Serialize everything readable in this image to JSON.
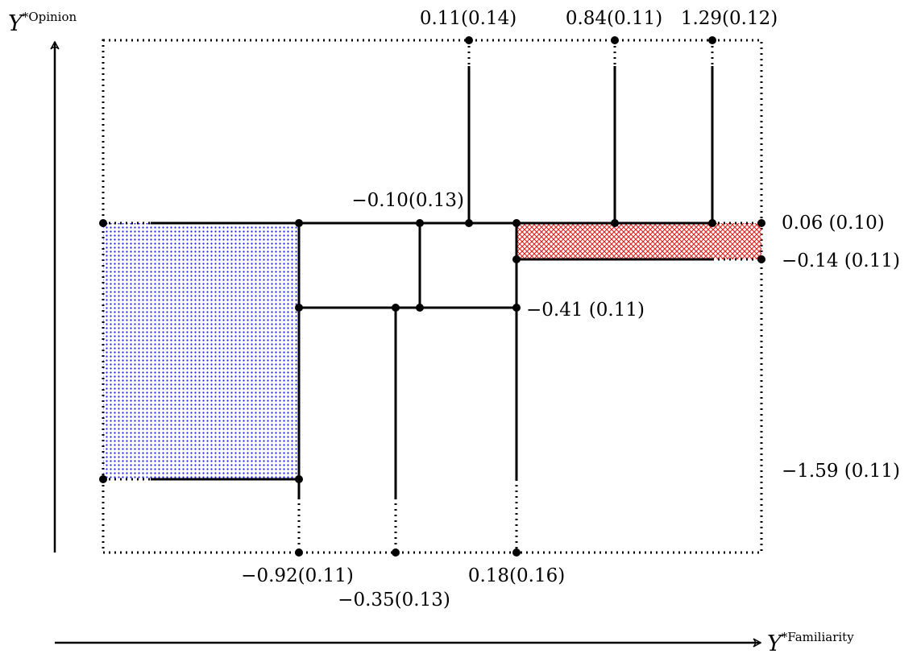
{
  "axes": {
    "y_axis": {
      "symbol": "Y",
      "superscript": "*Opinion"
    },
    "x_axis": {
      "symbol": "Y",
      "superscript": "*Familiarity"
    }
  },
  "thresholds": {
    "top": [
      {
        "label": "0.11(0.14)"
      },
      {
        "label": "0.84(0.11)"
      },
      {
        "label": "1.29(0.12)"
      }
    ],
    "middle": {
      "label": "−0.10(0.13)"
    },
    "right": [
      {
        "label": "0.06 (0.10)"
      },
      {
        "label": "−0.14 (0.11)"
      },
      {
        "label": "−1.59 (0.11)"
      }
    ],
    "inner": {
      "label": "−0.41 (0.11)"
    },
    "bottom": [
      {
        "label": "−0.92(0.11)"
      },
      {
        "label": "−0.35(0.13)"
      },
      {
        "label": "0.18(0.16)"
      }
    ]
  },
  "colors": {
    "blue_region": "#1a1aff",
    "red_region": "#e0201c",
    "lines": "#000000"
  }
}
